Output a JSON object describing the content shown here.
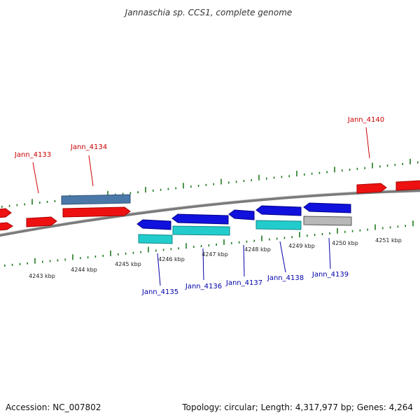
{
  "title": "Jannaschia sp. CCS1, complete genome",
  "footer": {
    "accession": "Accession: NC_007802",
    "topology": "Topology: circular; Length: 4,317,977 bp; Genes: 4,264"
  },
  "colors": {
    "background": "#ffffff",
    "backbone": "#7a7a7a",
    "tick": "#1f7a1f",
    "top_label": "#cc0000",
    "bottom_label": "#0000aa",
    "red_gene": "#ee1111",
    "steel_gene": "#4a78a8",
    "blue_gene": "#1111dd",
    "cyan_gene": "#22cccc",
    "gray_gene": "#b8b8b8"
  },
  "top_labels": [
    {
      "text": "Jann_4133"
    },
    {
      "text": "Jann_4134"
    },
    {
      "text": "Jann_4140"
    }
  ],
  "bottom_labels": [
    {
      "text": "Jann_4135"
    },
    {
      "text": "Jann_4136"
    },
    {
      "text": "Jann_4137"
    },
    {
      "text": "Jann_4138"
    },
    {
      "text": "Jann_4139"
    }
  ],
  "kbp_labels": [
    "4243 kbp",
    "4244 kbp",
    "4245 kbp",
    "4246 kbp",
    "4247 kbp",
    "4248 kbp",
    "4249 kbp",
    "4250 kbp",
    "4251 kbp"
  ],
  "genes": [
    {
      "color": "red",
      "strand": "forward"
    },
    {
      "color": "red",
      "strand": "forward"
    },
    {
      "color": "red",
      "strand": "forward"
    },
    {
      "color": "steel",
      "strand": "forward"
    },
    {
      "color": "red",
      "strand": "forward"
    },
    {
      "color": "red",
      "strand": "forward"
    },
    {
      "color": "red",
      "strand": "forward"
    },
    {
      "color": "blue",
      "strand": "reverse"
    },
    {
      "color": "blue",
      "strand": "reverse"
    },
    {
      "color": "blue",
      "strand": "reverse"
    },
    {
      "color": "blue",
      "strand": "reverse"
    },
    {
      "color": "blue",
      "strand": "reverse"
    },
    {
      "color": "cyan",
      "strand": "reverse"
    },
    {
      "color": "cyan",
      "strand": "reverse"
    },
    {
      "color": "cyan",
      "strand": "reverse"
    },
    {
      "color": "gray",
      "strand": "reverse"
    }
  ]
}
